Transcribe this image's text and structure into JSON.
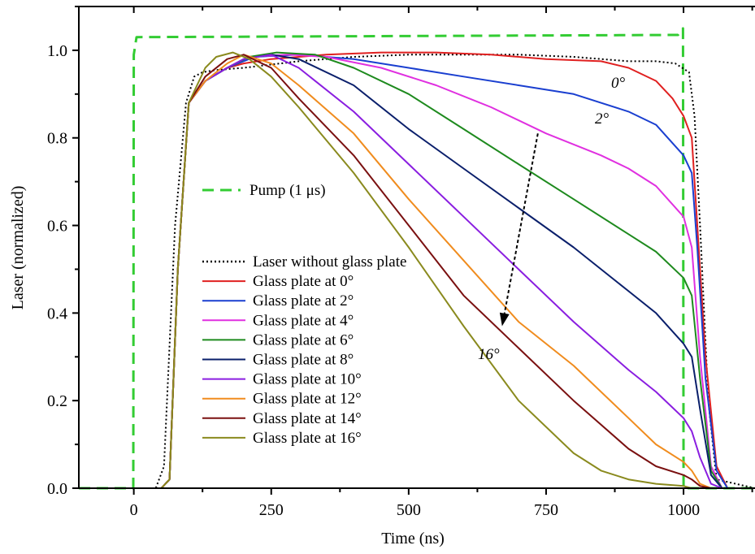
{
  "chart_data": {
    "type": "line",
    "xlabel": "Time (ns)",
    "ylabel": "Laser (normalized)",
    "xlim": [
      -100,
      1130
    ],
    "ylim": [
      0,
      1.1
    ],
    "x_ticks": [
      0,
      250,
      500,
      750,
      1000
    ],
    "x_tick_labels": [
      "0",
      "250",
      "500",
      "750",
      "1000"
    ],
    "y_ticks": [
      0.0,
      0.2,
      0.4,
      0.6,
      0.8,
      1.0
    ],
    "y_tick_labels": [
      "0.0",
      "0.2",
      "0.4",
      "0.6",
      "0.8",
      "1.0"
    ],
    "grid": false,
    "legend_pump": "Pump (1 μs)",
    "legend_placement": "left-center",
    "series": [
      {
        "name": "Pump (1 μs)",
        "color": "#33cc33",
        "dash": "dashed",
        "x": [
          -100,
          -1,
          0,
          5,
          990,
          999,
          1000,
          1001,
          1130
        ],
        "y": [
          0.0,
          0.0,
          0.99,
          1.03,
          1.035,
          1.05,
          0.0,
          0.0,
          0.0
        ]
      },
      {
        "name": "Laser without glass plate",
        "color": "#000000",
        "dash": "dotted",
        "x": [
          -100,
          40,
          55,
          75,
          95,
          110,
          125,
          150,
          200,
          300,
          400,
          500,
          600,
          700,
          800,
          850,
          900,
          950,
          985,
          1010,
          1020,
          1030,
          1045,
          1060,
          1130
        ],
        "y": [
          0.0,
          0.0,
          0.05,
          0.6,
          0.88,
          0.94,
          0.95,
          0.955,
          0.96,
          0.975,
          0.985,
          0.99,
          0.99,
          0.99,
          0.985,
          0.98,
          0.975,
          0.975,
          0.97,
          0.95,
          0.85,
          0.6,
          0.2,
          0.02,
          0.0
        ]
      },
      {
        "name": "Glass plate at 0°",
        "color": "#e02020",
        "dash": "solid",
        "x": [
          -100,
          50,
          65,
          80,
          100,
          130,
          170,
          200,
          250,
          350,
          450,
          550,
          650,
          750,
          850,
          900,
          950,
          980,
          1000,
          1015,
          1025,
          1040,
          1060,
          1080,
          1130
        ],
        "y": [
          0.0,
          0.0,
          0.02,
          0.5,
          0.88,
          0.93,
          0.96,
          0.97,
          0.98,
          0.99,
          0.995,
          0.995,
          0.99,
          0.98,
          0.975,
          0.96,
          0.93,
          0.89,
          0.85,
          0.8,
          0.6,
          0.3,
          0.05,
          0.0,
          0.0
        ]
      },
      {
        "name": "Glass plate at 2°",
        "color": "#1a3fd0",
        "dash": "solid",
        "x": [
          -100,
          50,
          65,
          80,
          100,
          130,
          170,
          220,
          300,
          400,
          500,
          600,
          700,
          800,
          900,
          950,
          1000,
          1015,
          1025,
          1040,
          1060,
          1080,
          1130
        ],
        "y": [
          0.0,
          0.0,
          0.02,
          0.5,
          0.88,
          0.93,
          0.96,
          0.985,
          0.99,
          0.98,
          0.96,
          0.94,
          0.92,
          0.9,
          0.86,
          0.83,
          0.76,
          0.72,
          0.55,
          0.25,
          0.04,
          0.0,
          0.0
        ]
      },
      {
        "name": "Glass plate at 4°",
        "color": "#e030e0",
        "dash": "solid",
        "x": [
          -100,
          50,
          65,
          80,
          100,
          130,
          170,
          210,
          280,
          350,
          450,
          550,
          650,
          750,
          850,
          900,
          950,
          1000,
          1015,
          1030,
          1050,
          1070,
          1130
        ],
        "y": [
          0.0,
          0.0,
          0.02,
          0.5,
          0.88,
          0.93,
          0.96,
          0.985,
          0.99,
          0.985,
          0.96,
          0.92,
          0.87,
          0.81,
          0.76,
          0.73,
          0.69,
          0.62,
          0.55,
          0.3,
          0.05,
          0.0,
          0.0
        ]
      },
      {
        "name": "Glass plate at 6°",
        "color": "#1e8a1e",
        "dash": "solid",
        "x": [
          -100,
          50,
          65,
          80,
          100,
          130,
          170,
          210,
          260,
          330,
          400,
          500,
          600,
          700,
          800,
          900,
          950,
          1000,
          1015,
          1030,
          1050,
          1070,
          1130
        ],
        "y": [
          0.0,
          0.0,
          0.02,
          0.5,
          0.88,
          0.93,
          0.96,
          0.985,
          0.995,
          0.99,
          0.96,
          0.9,
          0.82,
          0.74,
          0.66,
          0.58,
          0.54,
          0.48,
          0.44,
          0.25,
          0.04,
          0.0,
          0.0
        ]
      },
      {
        "name": "Glass plate at 8°",
        "color": "#0a1f6b",
        "dash": "solid",
        "x": [
          -100,
          50,
          65,
          80,
          100,
          130,
          170,
          200,
          250,
          300,
          400,
          500,
          600,
          700,
          800,
          900,
          950,
          1000,
          1015,
          1030,
          1050,
          1070,
          1130
        ],
        "y": [
          0.0,
          0.0,
          0.02,
          0.5,
          0.88,
          0.93,
          0.96,
          0.98,
          0.99,
          0.98,
          0.92,
          0.82,
          0.73,
          0.64,
          0.55,
          0.45,
          0.4,
          0.33,
          0.3,
          0.18,
          0.03,
          0.0,
          0.0
        ]
      },
      {
        "name": "Glass plate at 10°",
        "color": "#8a1ee0",
        "dash": "solid",
        "x": [
          -100,
          50,
          65,
          80,
          100,
          130,
          170,
          200,
          250,
          300,
          400,
          500,
          600,
          700,
          800,
          900,
          950,
          1000,
          1015,
          1030,
          1050,
          1070,
          1130
        ],
        "y": [
          0.0,
          0.0,
          0.02,
          0.5,
          0.88,
          0.93,
          0.96,
          0.98,
          0.99,
          0.96,
          0.86,
          0.74,
          0.62,
          0.5,
          0.38,
          0.27,
          0.22,
          0.16,
          0.13,
          0.07,
          0.01,
          0.0,
          0.0
        ]
      },
      {
        "name": "Glass plate at 12°",
        "color": "#f08c1e",
        "dash": "solid",
        "x": [
          -100,
          50,
          65,
          80,
          100,
          130,
          170,
          200,
          250,
          300,
          400,
          500,
          600,
          700,
          800,
          900,
          950,
          1000,
          1015,
          1030,
          1050,
          1130
        ],
        "y": [
          0.0,
          0.0,
          0.02,
          0.5,
          0.88,
          0.93,
          0.97,
          0.99,
          0.97,
          0.92,
          0.81,
          0.66,
          0.52,
          0.38,
          0.28,
          0.16,
          0.1,
          0.06,
          0.04,
          0.01,
          0.0,
          0.0
        ]
      },
      {
        "name": "Glass plate at 14°",
        "color": "#7a1010",
        "dash": "solid",
        "x": [
          -100,
          50,
          65,
          80,
          100,
          130,
          170,
          200,
          250,
          300,
          400,
          500,
          600,
          700,
          800,
          900,
          950,
          1000,
          1015,
          1030,
          1050,
          1130
        ],
        "y": [
          0.0,
          0.0,
          0.02,
          0.5,
          0.88,
          0.94,
          0.98,
          0.99,
          0.96,
          0.89,
          0.76,
          0.6,
          0.44,
          0.32,
          0.2,
          0.09,
          0.05,
          0.03,
          0.02,
          0.005,
          0.0,
          0.0
        ]
      },
      {
        "name": "Glass plate at 16°",
        "color": "#8a8a1e",
        "dash": "solid",
        "x": [
          -100,
          50,
          65,
          80,
          100,
          130,
          150,
          180,
          210,
          250,
          300,
          400,
          500,
          600,
          700,
          800,
          850,
          900,
          950,
          1000,
          1015,
          1040,
          1130
        ],
        "y": [
          0.0,
          0.0,
          0.02,
          0.5,
          0.88,
          0.96,
          0.985,
          0.995,
          0.98,
          0.94,
          0.87,
          0.72,
          0.55,
          0.37,
          0.2,
          0.08,
          0.04,
          0.02,
          0.01,
          0.005,
          0.0,
          0.0,
          0.0
        ]
      }
    ],
    "annotations": {
      "label_0deg": "0°",
      "label_2deg": "2°",
      "label_16deg": "16°",
      "arrow": {
        "from": [
          735,
          0.81
        ],
        "to": [
          670,
          0.37
        ]
      }
    }
  }
}
